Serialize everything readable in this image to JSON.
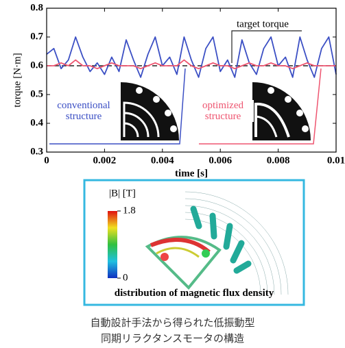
{
  "chart_data": {
    "type": "line",
    "x_label": "time [s]",
    "y_label": "torque [N·m]",
    "x": [
      0,
      0.00025,
      0.0005,
      0.00075,
      0.001,
      0.00125,
      0.0015,
      0.00175,
      0.002,
      0.00225,
      0.0025,
      0.00275,
      0.003,
      0.00325,
      0.0035,
      0.00375,
      0.004,
      0.00425,
      0.0045,
      0.00475,
      0.005,
      0.00525,
      0.0055,
      0.00575,
      0.006,
      0.00625,
      0.0065,
      0.00675,
      0.007,
      0.00725,
      0.0075,
      0.00775,
      0.008,
      0.00825,
      0.0085,
      0.00875,
      0.009,
      0.00925,
      0.0095,
      0.00975,
      0.01
    ],
    "series": [
      {
        "name": "conventional structure",
        "color": "#3b4fc4",
        "values": [
          0.64,
          0.66,
          0.59,
          0.62,
          0.7,
          0.63,
          0.58,
          0.61,
          0.57,
          0.63,
          0.58,
          0.69,
          0.62,
          0.56,
          0.64,
          0.7,
          0.6,
          0.63,
          0.57,
          0.7,
          0.62,
          0.56,
          0.66,
          0.7,
          0.58,
          0.62,
          0.56,
          0.69,
          0.61,
          0.57,
          0.66,
          0.7,
          0.6,
          0.63,
          0.56,
          0.7,
          0.62,
          0.56,
          0.66,
          0.7,
          0.57
        ]
      },
      {
        "name": "optimized structure",
        "color": "#ee5570",
        "values": [
          0.6,
          0.6,
          0.61,
          0.6,
          0.62,
          0.6,
          0.6,
          0.59,
          0.6,
          0.61,
          0.6,
          0.6,
          0.6,
          0.59,
          0.6,
          0.61,
          0.6,
          0.6,
          0.6,
          0.62,
          0.6,
          0.59,
          0.6,
          0.61,
          0.6,
          0.6,
          0.59,
          0.6,
          0.61,
          0.6,
          0.6,
          0.61,
          0.6,
          0.6,
          0.59,
          0.6,
          0.61,
          0.6,
          0.6,
          0.6,
          0.6
        ]
      }
    ],
    "target_torque": {
      "label": "target torque",
      "value": 0.6,
      "color": "#222222"
    },
    "xlim": [
      0,
      0.01
    ],
    "xticks": [
      0,
      0.002,
      0.004,
      0.006,
      0.008,
      0.01
    ],
    "ylim": [
      0.3,
      0.8
    ],
    "yticks": [
      0.3,
      0.4,
      0.5,
      0.6,
      0.7,
      0.8
    ]
  },
  "figure": {
    "colorbar_label": "|B| [T]",
    "colorbar_ticks": [
      0,
      1.8
    ],
    "panel_caption": "distribution of magnetic flux density"
  },
  "caption": [
    "自動設計手法から得られた低振動型",
    "同期リラクタンスモータの構造"
  ]
}
